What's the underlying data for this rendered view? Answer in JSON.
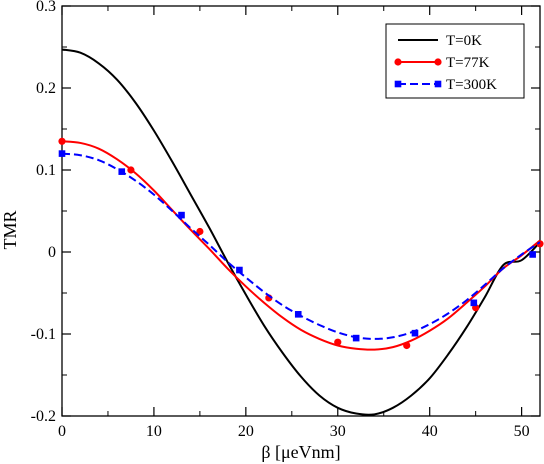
{
  "chart_data": {
    "type": "line",
    "title": "",
    "xlabel": "β [μeVnm]",
    "ylabel": "TMR",
    "xlim": [
      0,
      52
    ],
    "ylim": [
      -0.2,
      0.3
    ],
    "x_ticks": [
      0,
      10,
      20,
      30,
      40,
      50
    ],
    "x_tick_labels": [
      "0",
      "10",
      "20",
      "30",
      "40",
      "50"
    ],
    "y_ticks": [
      -0.2,
      -0.1,
      0,
      0.1,
      0.2,
      0.3
    ],
    "y_tick_labels": [
      "-0.2",
      "-0.1",
      "0",
      "0.1",
      "0.2",
      "0.3"
    ],
    "grid": false,
    "legend_position": "top-right",
    "series": [
      {
        "name": "T=0K",
        "color": "#000000",
        "line_style": "solid",
        "marker": "none",
        "x": [
          0,
          2,
          4,
          6,
          8,
          10,
          12,
          14,
          16,
          18,
          20,
          22,
          24,
          26,
          28,
          30,
          32,
          34,
          36,
          38,
          40,
          42,
          44,
          46,
          48,
          50,
          52
        ],
        "y": [
          0.247,
          0.243,
          0.23,
          0.21,
          0.182,
          0.148,
          0.11,
          0.07,
          0.03,
          -0.012,
          -0.052,
          -0.09,
          -0.123,
          -0.152,
          -0.175,
          -0.19,
          -0.197,
          -0.198,
          -0.19,
          -0.175,
          -0.154,
          -0.125,
          -0.092,
          -0.055,
          -0.016,
          -0.01,
          0.012
        ]
      },
      {
        "name": "T=77K",
        "color": "#ff0000",
        "line_style": "solid",
        "marker": "circle",
        "x": [
          0,
          2,
          4,
          6,
          8,
          10,
          12,
          14,
          16,
          18,
          20,
          22,
          24,
          26,
          28,
          30,
          32,
          34,
          36,
          38,
          40,
          42,
          44,
          46,
          48,
          50,
          52
        ],
        "y": [
          0.135,
          0.133,
          0.126,
          0.113,
          0.096,
          0.075,
          0.051,
          0.027,
          0.004,
          -0.02,
          -0.042,
          -0.062,
          -0.08,
          -0.095,
          -0.106,
          -0.114,
          -0.118,
          -0.119,
          -0.116,
          -0.108,
          -0.096,
          -0.081,
          -0.062,
          -0.042,
          -0.02,
          -0.004,
          0.014
        ],
        "marker_x": [
          0,
          7.5,
          15,
          22.5,
          30,
          37.5,
          45,
          52
        ],
        "marker_y": [
          0.135,
          0.1,
          0.025,
          -0.056,
          -0.11,
          -0.114,
          -0.068,
          0.01
        ]
      },
      {
        "name": "T=300K",
        "color": "#0000ff",
        "line_style": "dashed",
        "marker": "square",
        "x": [
          0,
          2,
          4,
          6,
          8,
          10,
          12,
          14,
          16,
          18,
          20,
          22,
          24,
          26,
          28,
          30,
          32,
          34,
          36,
          38,
          40,
          42,
          44,
          46,
          48,
          50,
          52
        ],
        "y": [
          0.12,
          0.118,
          0.112,
          0.101,
          0.087,
          0.07,
          0.05,
          0.029,
          0.009,
          -0.012,
          -0.031,
          -0.049,
          -0.065,
          -0.078,
          -0.089,
          -0.098,
          -0.104,
          -0.106,
          -0.104,
          -0.098,
          -0.088,
          -0.075,
          -0.059,
          -0.04,
          -0.02,
          -0.003,
          0.012
        ],
        "marker_x": [
          0,
          6.5,
          13,
          19.3,
          25.7,
          32,
          38.4,
          44.8,
          51.2
        ],
        "marker_y": [
          0.12,
          0.098,
          0.045,
          -0.022,
          -0.076,
          -0.105,
          -0.099,
          -0.062,
          -0.003
        ]
      }
    ]
  }
}
